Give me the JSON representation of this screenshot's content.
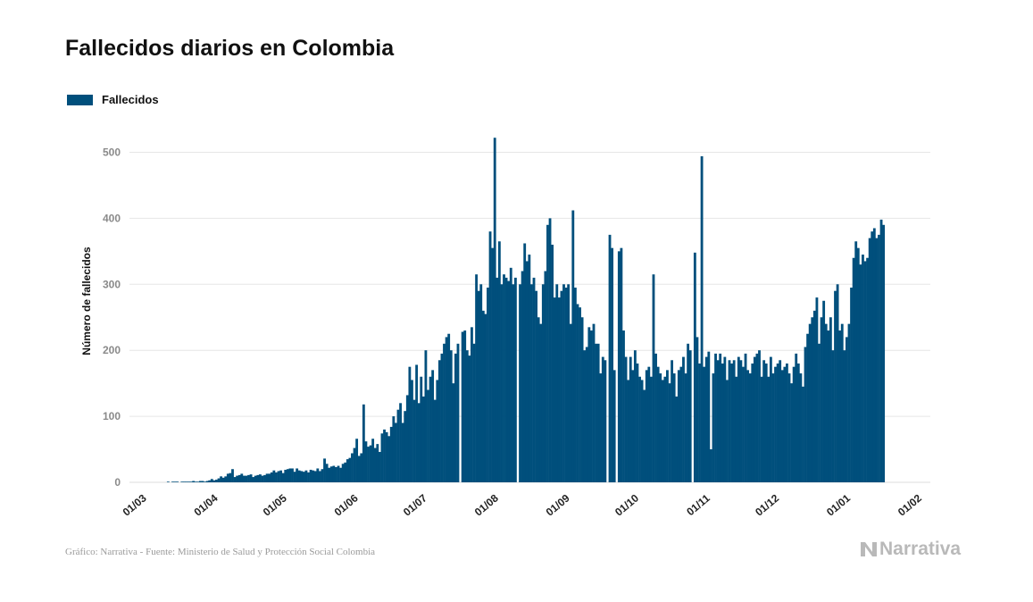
{
  "title": "Fallecidos diarios en Colombia",
  "legend": {
    "label": "Fallecidos"
  },
  "source": "Gráfico: Narrativa - Fuente: Ministerio de Salud y Protección Social Colombia",
  "logo": {
    "text": "Narrativa",
    "icon": "narrativa-n-icon"
  },
  "colors": {
    "bar": "#004f7c",
    "grid": "#e6e6e6",
    "logo": "#b9b9b9"
  },
  "chart_data": {
    "type": "bar",
    "title": "Fallecidos diarios en Colombia",
    "ylabel": "Número de fallecidos",
    "xlabel": "",
    "ylim": [
      0,
      550
    ],
    "yticks": [
      0,
      100,
      200,
      300,
      400,
      500
    ],
    "grid": true,
    "legend_position": "top-left",
    "series": [
      {
        "name": "Fallecidos"
      }
    ],
    "start_date": "2020-03-01",
    "xtick_labels": [
      "01/03",
      "01/04",
      "01/05",
      "01/06",
      "01/07",
      "01/08",
      "01/09",
      "01/10",
      "01/11",
      "01/12",
      "01/01",
      "01/02"
    ],
    "values": [
      0,
      0,
      0,
      0,
      0,
      0,
      0,
      0,
      0,
      0,
      0,
      0,
      0,
      0,
      0,
      0,
      1,
      0,
      1,
      1,
      1,
      0,
      1,
      1,
      1,
      1,
      1,
      2,
      1,
      1,
      2,
      2,
      1,
      2,
      3,
      5,
      3,
      4,
      6,
      9,
      7,
      9,
      13,
      14,
      20,
      8,
      10,
      11,
      13,
      10,
      10,
      11,
      12,
      8,
      10,
      11,
      12,
      10,
      11,
      13,
      13,
      15,
      18,
      15,
      17,
      18,
      14,
      19,
      20,
      21,
      21,
      16,
      21,
      18,
      17,
      16,
      18,
      15,
      19,
      18,
      17,
      21,
      17,
      20,
      36,
      28,
      22,
      24,
      25,
      23,
      25,
      22,
      28,
      30,
      35,
      37,
      44,
      52,
      66,
      40,
      44,
      118,
      62,
      54,
      56,
      66,
      52,
      58,
      46,
      74,
      80,
      76,
      70,
      84,
      100,
      90,
      110,
      120,
      90,
      108,
      132,
      175,
      155,
      125,
      178,
      120,
      160,
      130,
      200,
      140,
      160,
      170,
      125,
      155,
      185,
      195,
      210,
      220,
      225,
      200,
      150,
      195,
      210,
      0,
      228,
      230,
      200,
      192,
      235,
      210,
      315,
      290,
      300,
      260,
      255,
      295,
      380,
      355,
      522,
      310,
      365,
      300,
      315,
      310,
      305,
      325,
      300,
      310,
      0,
      300,
      320,
      362,
      335,
      345,
      300,
      310,
      290,
      250,
      240,
      300,
      320,
      390,
      400,
      360,
      280,
      300,
      280,
      290,
      300,
      295,
      300,
      240,
      412,
      295,
      270,
      265,
      250,
      200,
      205,
      235,
      230,
      240,
      210,
      210,
      165,
      190,
      185,
      0,
      375,
      355,
      170,
      0,
      350,
      355,
      230,
      190,
      155,
      190,
      170,
      200,
      180,
      160,
      155,
      140,
      170,
      175,
      160,
      315,
      195,
      175,
      165,
      155,
      160,
      170,
      150,
      185,
      165,
      130,
      170,
      175,
      190,
      165,
      210,
      200,
      0,
      348,
      220,
      180,
      494,
      175,
      190,
      198,
      50,
      165,
      195,
      185,
      195,
      180,
      190,
      155,
      185,
      180,
      185,
      160,
      190,
      185,
      175,
      195,
      170,
      165,
      180,
      190,
      195,
      200,
      160,
      185,
      180,
      160,
      190,
      165,
      175,
      180,
      185,
      170,
      175,
      180,
      165,
      150,
      175,
      195,
      180,
      165,
      145,
      205,
      225,
      240,
      250,
      260,
      280,
      210,
      250,
      275,
      240,
      230,
      250,
      200,
      290,
      300,
      230,
      240,
      200,
      220,
      240,
      295,
      340,
      365,
      355,
      330,
      345,
      335,
      340,
      370,
      380,
      385,
      370,
      375,
      398,
      390
    ]
  }
}
